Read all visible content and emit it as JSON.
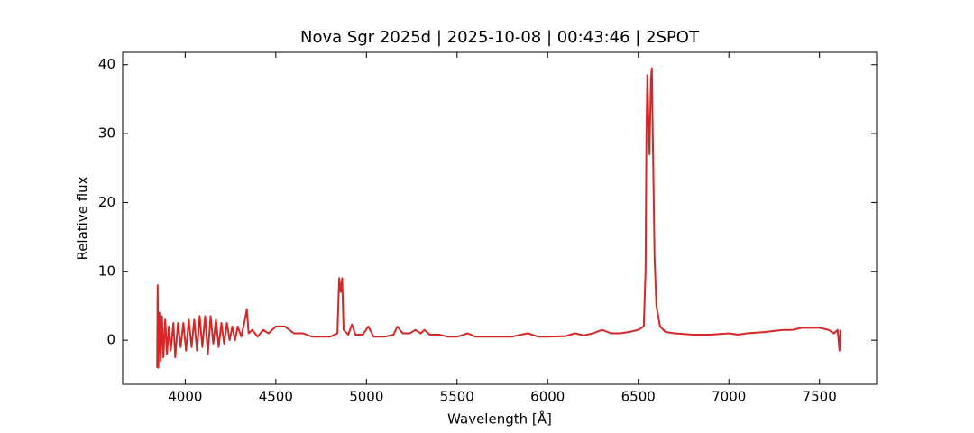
{
  "chart_data": {
    "type": "line",
    "title": "Nova Sgr 2025d | 2025-10-08 | 00:43:46 | 2SPOT",
    "xlabel": "Wavelength [Å]",
    "ylabel": "Relative flux",
    "color": "#d62728",
    "xlim": [
      3655,
      7815
    ],
    "ylim": [
      -6.4,
      41.8
    ],
    "xticks": [
      4000,
      4500,
      5000,
      5500,
      6000,
      6500,
      7000,
      7500
    ],
    "yticks": [
      0,
      10,
      20,
      30,
      40
    ],
    "x": [
      3845,
      3848,
      3852,
      3858,
      3865,
      3872,
      3880,
      3890,
      3900,
      3910,
      3920,
      3935,
      3945,
      3960,
      3975,
      3990,
      4005,
      4020,
      4035,
      4050,
      4065,
      4080,
      4095,
      4110,
      4125,
      4140,
      4155,
      4170,
      4185,
      4200,
      4215,
      4230,
      4245,
      4260,
      4275,
      4290,
      4310,
      4330,
      4340,
      4350,
      4370,
      4400,
      4430,
      4460,
      4500,
      4550,
      4600,
      4650,
      4700,
      4750,
      4800,
      4840,
      4850,
      4858,
      4866,
      4874,
      4900,
      4920,
      4940,
      4980,
      5010,
      5040,
      5100,
      5150,
      5170,
      5200,
      5240,
      5270,
      5300,
      5320,
      5350,
      5400,
      5450,
      5500,
      5560,
      5600,
      5700,
      5800,
      5890,
      5950,
      6000,
      6100,
      6150,
      6200,
      6250,
      6300,
      6350,
      6400,
      6450,
      6500,
      6530,
      6540,
      6545,
      6550,
      6555,
      6562,
      6570,
      6575,
      6580,
      6590,
      6600,
      6620,
      6650,
      6700,
      6800,
      6900,
      7000,
      7050,
      7100,
      7200,
      7300,
      7350,
      7400,
      7450,
      7500,
      7550,
      7580,
      7600,
      7610,
      7615
    ],
    "values": [
      -4,
      8,
      -4,
      4,
      -3,
      3.5,
      -2.5,
      3,
      -2,
      2,
      -1.5,
      2.5,
      -2.5,
      2.5,
      -1,
      2.5,
      -1.5,
      3,
      -1,
      3,
      -1.5,
      3.5,
      -1,
      3.5,
      -2,
      3.5,
      -0.5,
      3,
      -1,
      2.5,
      -0.5,
      2.5,
      0,
      2,
      0,
      2,
      0.5,
      3,
      4.5,
      1,
      1.5,
      0.5,
      1.5,
      1,
      2,
      2,
      1,
      1,
      0.5,
      0.5,
      0.5,
      1,
      9,
      7,
      9,
      1.5,
      0.8,
      2.3,
      0.8,
      0.8,
      2,
      0.5,
      0.5,
      0.8,
      2,
      1,
      1,
      1.5,
      1,
      1.5,
      0.8,
      0.8,
      0.5,
      0.5,
      1,
      0.5,
      0.5,
      0.5,
      1,
      0.5,
      0.5,
      0.6,
      1,
      0.7,
      1,
      1.5,
      1,
      1,
      1.2,
      1.5,
      2,
      10,
      30,
      38.5,
      33,
      27,
      38,
      39.5,
      30,
      12,
      5,
      2,
      1.2,
      1,
      0.8,
      0.8,
      1,
      0.8,
      1,
      1.2,
      1.5,
      1.5,
      1.8,
      1.8,
      1.8,
      1.5,
      1,
      1.5,
      -1.5,
      1.5
    ]
  }
}
